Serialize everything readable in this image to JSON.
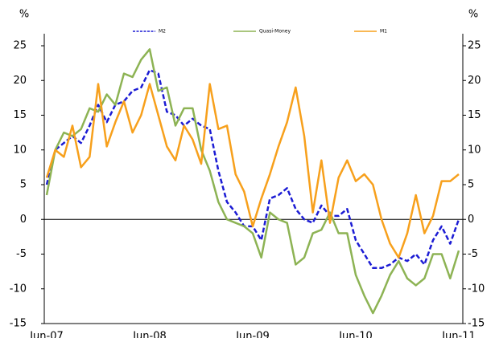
{
  "chart_data": {
    "type": "line",
    "y_label": "%",
    "y2_label": "%",
    "categories": [
      "Jun-07",
      null,
      null,
      null,
      null,
      null,
      null,
      null,
      null,
      null,
      null,
      null,
      "Jun-08",
      null,
      null,
      null,
      null,
      null,
      null,
      null,
      null,
      null,
      null,
      null,
      "Jun-09",
      null,
      null,
      null,
      null,
      null,
      null,
      null,
      null,
      null,
      null,
      null,
      "Jun-10",
      null,
      null,
      null,
      null,
      null,
      null,
      null,
      null,
      null,
      null,
      null,
      "Jun-11"
    ],
    "series": [
      {
        "name": "M2",
        "color": "#1c1cd4",
        "dashed": true,
        "values": [
          5,
          10,
          11,
          12,
          11,
          13.5,
          16.5,
          14,
          16.5,
          17,
          18.5,
          19,
          21.5,
          21,
          15.5,
          15,
          13.5,
          14.5,
          13.5,
          13,
          7,
          2.5,
          1,
          -1,
          -1,
          -3,
          3,
          3.5,
          4.5,
          1.5,
          0,
          -0.5,
          2,
          0.5,
          0.5,
          1.5,
          -3,
          -5,
          -7,
          -7,
          -6.5,
          -5.5,
          -6,
          -5,
          -6.5,
          -3,
          -1,
          -3.5,
          0
        ]
      },
      {
        "name": "Quasi-Money",
        "color": "#8db354",
        "dashed": false,
        "values": [
          3.5,
          10,
          12.5,
          12,
          13,
          16,
          15.5,
          18,
          16.5,
          21,
          20.5,
          23,
          24.5,
          18.5,
          19,
          13.5,
          16,
          16,
          10,
          7,
          2.5,
          0,
          -0.5,
          -1,
          -2,
          -5.5,
          1,
          0,
          -0.5,
          -6.5,
          -5.5,
          -2,
          -1.5,
          1,
          -2,
          -2,
          -8,
          -11,
          -13.5,
          -11,
          -8,
          -6,
          -8.5,
          -9.5,
          -8.5,
          -5,
          -5,
          -8.5,
          -4.5
        ]
      },
      {
        "name": "M1",
        "color": "#f7a01c",
        "dashed": false,
        "values": [
          6,
          10,
          9,
          13.5,
          7.5,
          9,
          19.5,
          10.5,
          14,
          17,
          12.5,
          15,
          19.5,
          15,
          10.5,
          8.5,
          13.5,
          11.5,
          8,
          19.5,
          13,
          13.5,
          6.5,
          4,
          -1,
          3,
          6.5,
          10.5,
          14,
          19,
          12,
          1,
          8.5,
          -0.5,
          6,
          8.5,
          5.5,
          6.5,
          5,
          0,
          -3.5,
          -5.5,
          -2,
          3.5,
          -2,
          0.5,
          5.5,
          5.5,
          6.5
        ]
      }
    ],
    "ylim": [
      -15,
      25
    ],
    "yticks": [
      -15,
      -10,
      -5,
      0,
      5,
      10,
      15,
      20,
      25
    ],
    "y2lim": [
      -15,
      25
    ],
    "y2ticks": [
      -15,
      -10,
      -5,
      0,
      5,
      10,
      15,
      20,
      25
    ]
  }
}
